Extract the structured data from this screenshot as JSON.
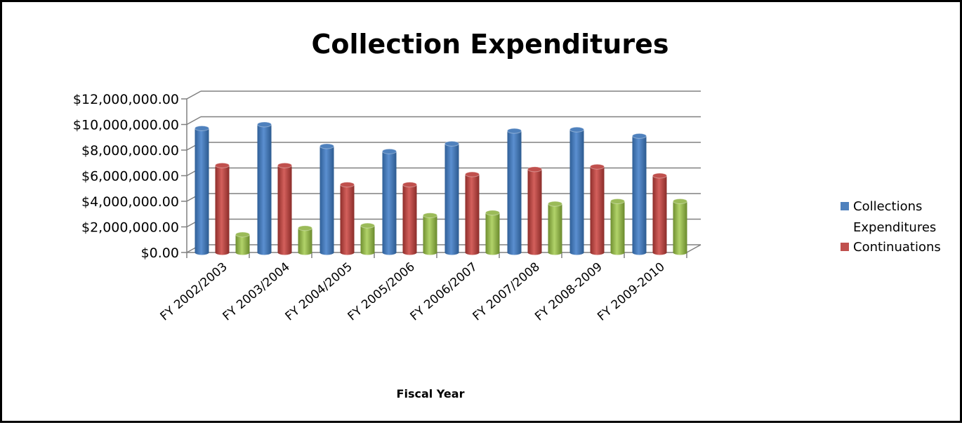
{
  "chart_data": {
    "type": "bar",
    "style": "3d-clustered-column",
    "title": "Collection Expenditures",
    "xlabel": "Fiscal Year",
    "ylabel": "",
    "ylim": [
      0,
      12000000
    ],
    "y_ticks": [
      "$0.00",
      "$2,000,000.00",
      "$4,000,000.00",
      "$6,000,000.00",
      "$8,000,000.00",
      "$10,000,000.00",
      "$12,000,000.00"
    ],
    "grid": true,
    "legend_position": "right",
    "categories": [
      "FY 2002/2003",
      "FY 2003/2004",
      "FY 2004/2005",
      "FY 2005/2006",
      "FY 2006/2007",
      "FY 2007/2008",
      "FY 2008-2009",
      "FY 2009-2010"
    ],
    "series": [
      {
        "name": "Collections Expenditures",
        "color": "#4F81BD",
        "values": [
          9700000,
          10000000,
          8300000,
          7900000,
          8500000,
          9500000,
          9600000,
          9100000
        ]
      },
      {
        "name": "Continuations",
        "color": "#C0504D",
        "values": [
          6800000,
          6800000,
          5300000,
          5300000,
          6100000,
          6500000,
          6700000,
          6000000
        ]
      },
      {
        "color": "#9BBB59",
        "values": [
          1400000,
          1900000,
          2100000,
          2900000,
          3100000,
          3800000,
          4000000,
          4000000
        ]
      }
    ],
    "legend_lines": [
      [
        "Collections",
        "Expenditures"
      ],
      [
        "Continuations"
      ]
    ]
  }
}
